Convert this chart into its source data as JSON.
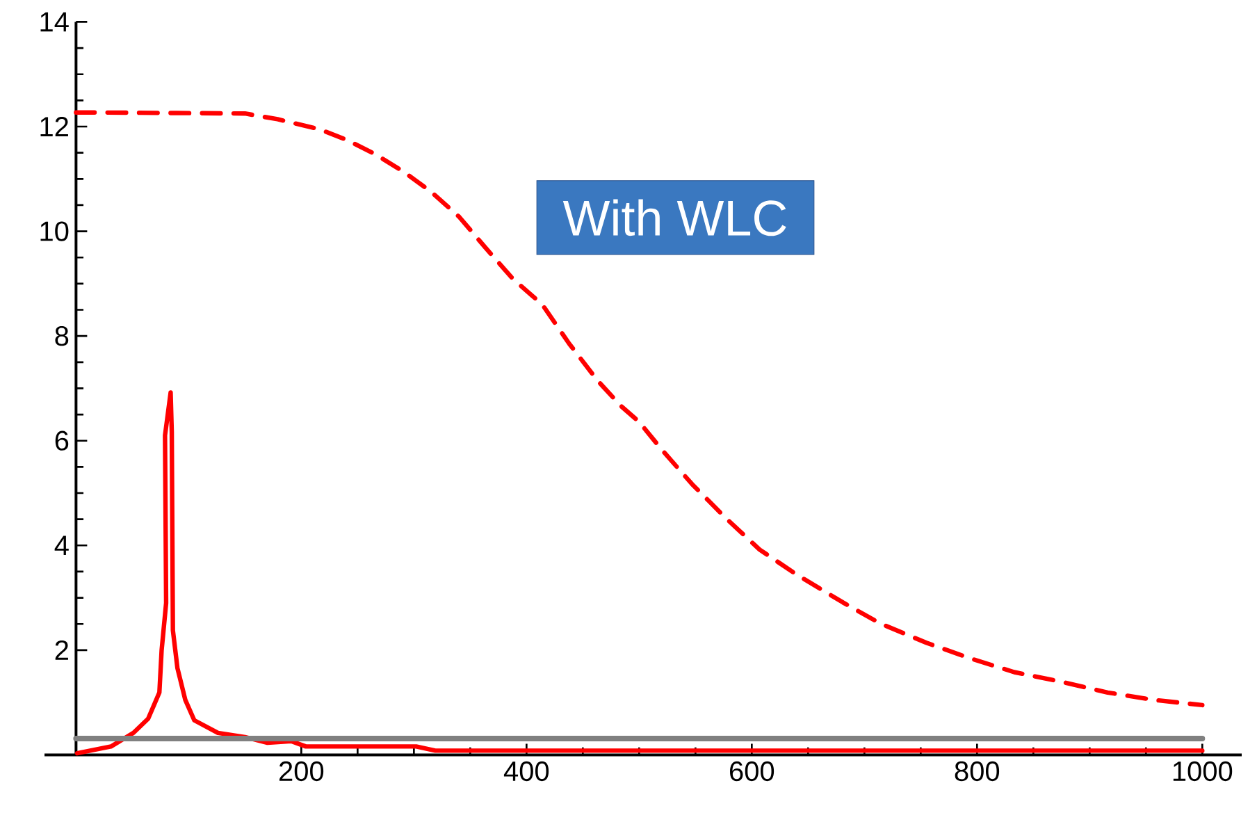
{
  "chart_data": {
    "type": "line",
    "xlim": [
      -28,
      1035
    ],
    "ylim": [
      0,
      14
    ],
    "xticks": [
      200,
      400,
      600,
      800,
      1000
    ],
    "yticks": [
      2,
      4,
      6,
      8,
      10,
      12,
      14
    ],
    "marker": "none",
    "annotations": [
      "With WLC"
    ],
    "series": [
      {
        "color": "#ff0000",
        "line_style": "dashed",
        "x": [
          0,
          15,
          150,
          179,
          216,
          241,
          265,
          290,
          315,
          340,
          363,
          388,
          414,
          438,
          463,
          484,
          500,
          520,
          547,
          578,
          607,
          640,
          681,
          714,
          755,
          793,
          833,
          874,
          916,
          957,
          1000
        ],
        "values": [
          12.27,
          12.27,
          12.25,
          12.14,
          11.95,
          11.74,
          11.48,
          11.15,
          10.76,
          10.28,
          9.7,
          9.09,
          8.6,
          7.85,
          7.15,
          6.66,
          6.36,
          5.83,
          5.17,
          4.5,
          3.92,
          3.44,
          2.91,
          2.51,
          2.14,
          1.85,
          1.58,
          1.4,
          1.19,
          1.05,
          0.95
        ]
      },
      {
        "color": "#ff0000",
        "line_style": "solid",
        "x": [
          1,
          31,
          51,
          64,
          74,
          76,
          80,
          79,
          84,
          85,
          86,
          90,
          97,
          105,
          126,
          150,
          170,
          191,
          204,
          302,
          319,
          1000
        ],
        "values": [
          0.03,
          0.16,
          0.42,
          0.69,
          1.19,
          2.0,
          2.9,
          6.1,
          6.92,
          6.17,
          2.38,
          1.66,
          1.05,
          0.66,
          0.42,
          0.34,
          0.23,
          0.26,
          0.16,
          0.16,
          0.08,
          0.08
        ]
      },
      {
        "color": "#808080",
        "line_style": "solid",
        "x": [
          0,
          1000
        ],
        "values": [
          0.31,
          0.31
        ]
      }
    ]
  }
}
